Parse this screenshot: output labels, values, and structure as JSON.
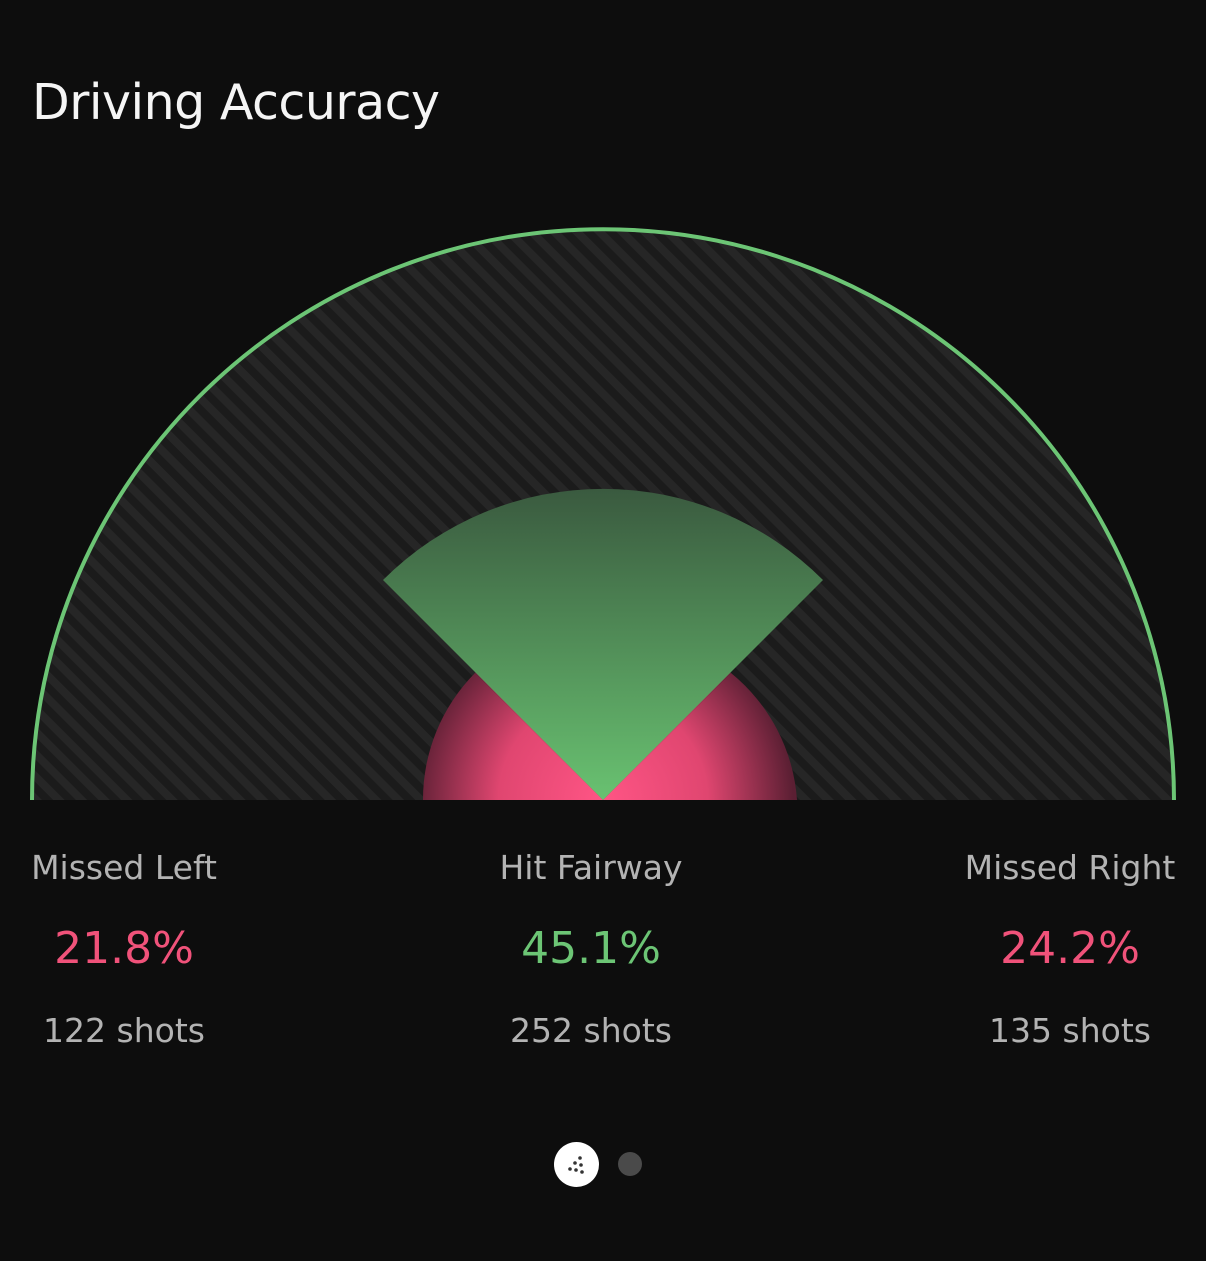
{
  "header": {
    "title": "Driving Accuracy"
  },
  "chart_data": {
    "type": "gauge",
    "categories": [
      "Missed Left",
      "Hit Fairway",
      "Missed Right"
    ],
    "values": [
      21.8,
      45.1,
      24.2
    ],
    "shots": [
      122,
      252,
      135
    ]
  },
  "stats": {
    "left": {
      "label": "Missed Left",
      "pct": "21.8%",
      "shots": "122 shots"
    },
    "center": {
      "label": "Hit Fairway",
      "pct": "45.1%",
      "shots": "252 shots"
    },
    "right": {
      "label": "Missed Right",
      "pct": "24.2%",
      "shots": "135 shots"
    }
  },
  "colors": {
    "green": "#6cc575",
    "red": "#f0527a",
    "background": "#0d0d0d",
    "label_gray": "#b3b3b3"
  },
  "pager": {
    "active_icon": "golf-ball-icon",
    "pages": 2,
    "current": 1
  }
}
